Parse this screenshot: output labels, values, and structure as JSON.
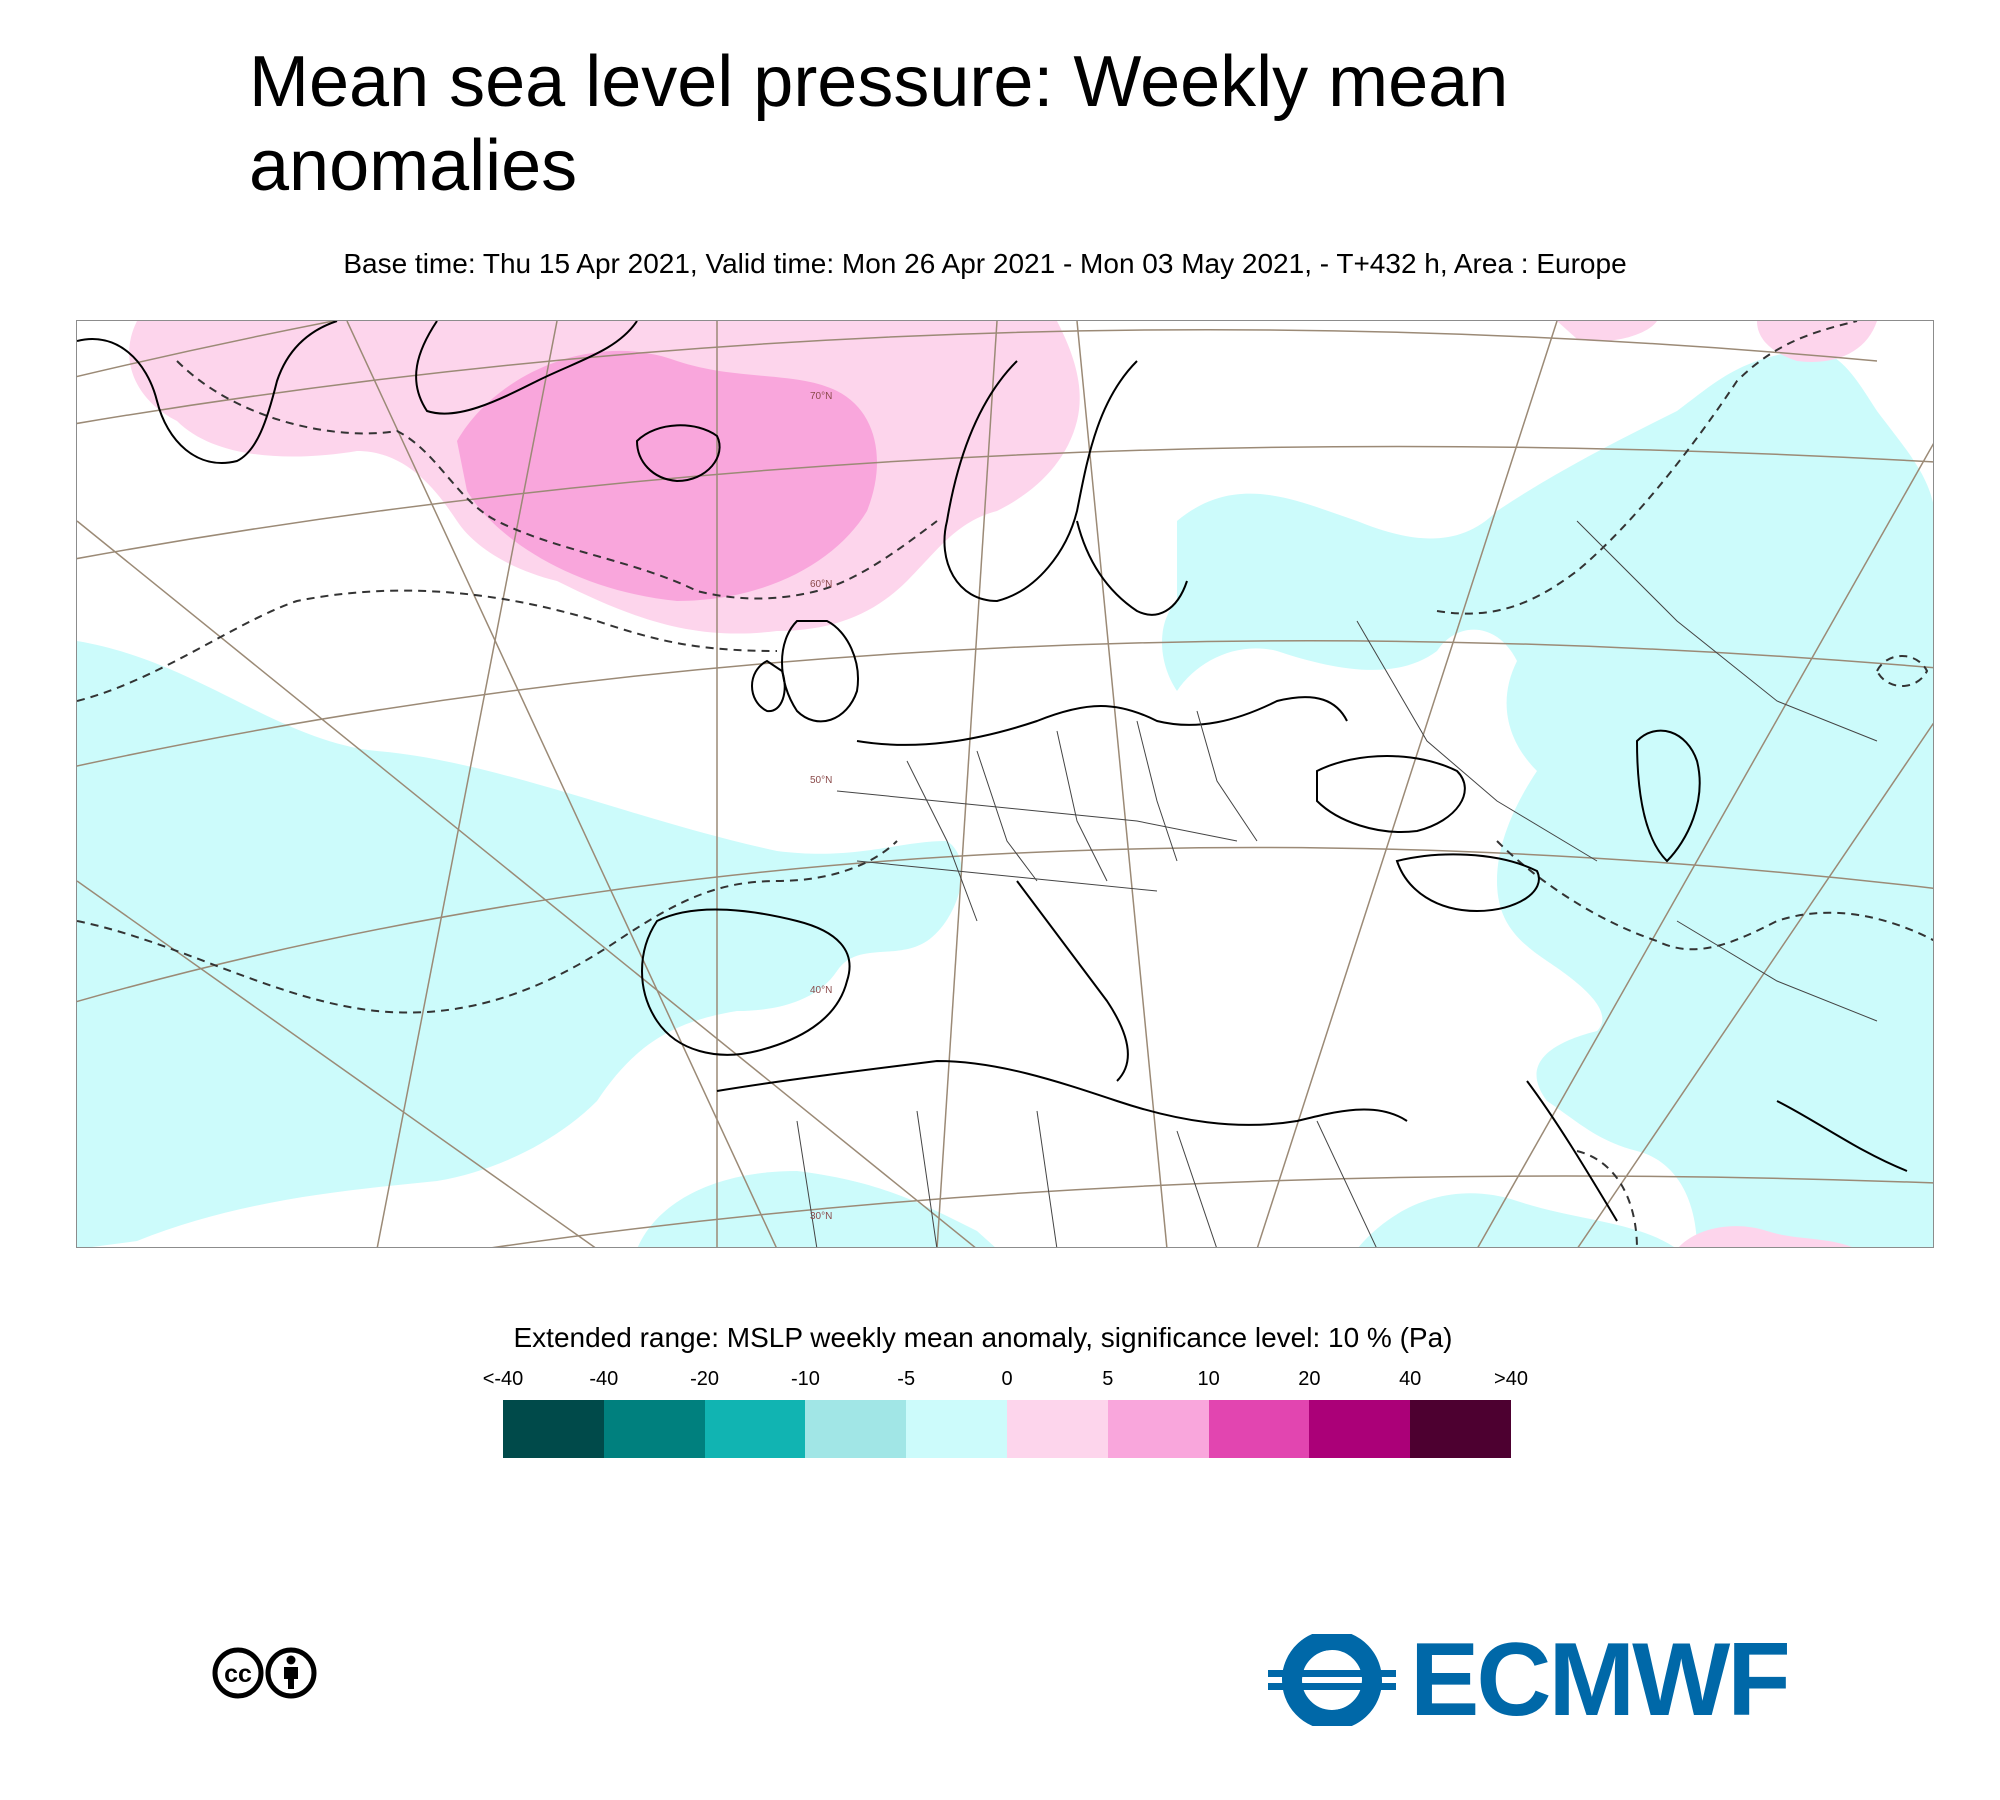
{
  "title": "Mean sea level pressure: Weekly mean anomalies",
  "subtitle": "Base time: Thu 15 Apr 2021, Valid time: Mon 26 Apr 2021 - Mon 03 May 2021, - T+432 h, Area : Europe",
  "map": {
    "latitude_labels": [
      "70°N",
      "60°N",
      "50°N",
      "40°N",
      "30°N"
    ],
    "colors": {
      "positive_light": "#fdd5ec",
      "positive_mid": "#f9a6dc",
      "negative_light": "#ccfbfb",
      "coastline": "#000000",
      "graticule": "#9b8a76"
    }
  },
  "legend": {
    "title": "Extended range: MSLP weekly mean anomaly, significance level: 10 % (Pa)",
    "ticks": [
      "<-40",
      "-40",
      "-20",
      "-10",
      "-5",
      "0",
      "5",
      "10",
      "20",
      "40",
      ">40"
    ],
    "colors": [
      "#004a4a",
      "#00807e",
      "#11b4b2",
      "#a1e6e6",
      "#ccfbfb",
      "#fdd5ec",
      "#f9a6dc",
      "#e245b0",
      "#ab0078",
      "#4d0030"
    ]
  },
  "branding": {
    "logo_text": "ECMWF",
    "logo_color": "#0068a8",
    "license_icon": "cc-by-icon"
  }
}
